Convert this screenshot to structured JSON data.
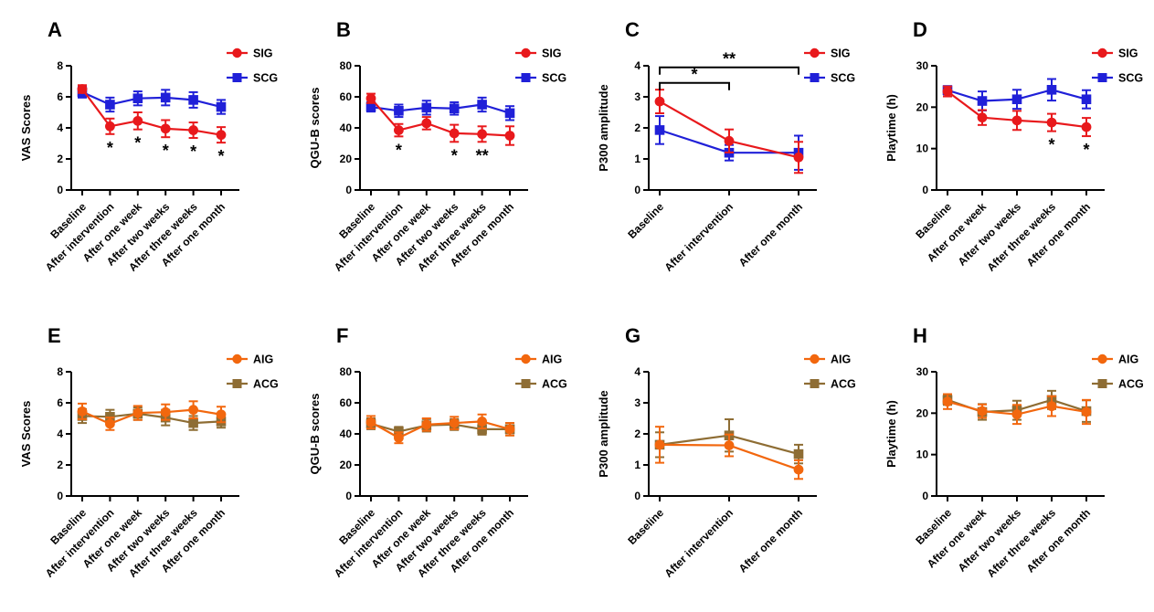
{
  "figure": {
    "background": "#FFFFFF",
    "rows": 2,
    "cols": 4
  },
  "colors": {
    "sig_red": "#E8191C",
    "scg_blue": "#2020D8",
    "aig_orange": "#F2670E",
    "acg_olive": "#8E6D34",
    "axis_black": "#000000"
  },
  "chart_data": [
    {
      "type": "line",
      "panel_label": "A",
      "title": "",
      "xlabel": "",
      "ylabel": "VAS Scores",
      "ylim": [
        0,
        8
      ],
      "yticks": [
        0,
        2,
        4,
        6,
        8
      ],
      "grid": false,
      "legend_position": "top-right",
      "categories": [
        "Baseline",
        "After intervention",
        "After one week",
        "After two weeks",
        "After three weeks",
        "After one month"
      ],
      "series": [
        {
          "name": "SIG",
          "color": "#E8191C",
          "marker": "circle",
          "values": [
            6.5,
            4.1,
            4.45,
            3.95,
            3.85,
            3.55
          ],
          "errors": [
            0.25,
            0.5,
            0.55,
            0.55,
            0.5,
            0.5
          ]
        },
        {
          "name": "SCG",
          "color": "#2020D8",
          "marker": "square",
          "values": [
            6.3,
            5.5,
            5.9,
            5.95,
            5.8,
            5.35
          ],
          "errors": [
            0.35,
            0.45,
            0.45,
            0.5,
            0.5,
            0.45
          ]
        }
      ],
      "sig_below": [
        {
          "category_index": 1,
          "text": "*"
        },
        {
          "category_index": 2,
          "text": "*"
        },
        {
          "category_index": 3,
          "text": "*"
        },
        {
          "category_index": 4,
          "text": "*"
        },
        {
          "category_index": 5,
          "text": "*"
        }
      ],
      "sig_brackets": []
    },
    {
      "type": "line",
      "panel_label": "B",
      "title": "",
      "xlabel": "",
      "ylabel": "QGU-B scores",
      "ylim": [
        0,
        80
      ],
      "yticks": [
        0,
        20,
        40,
        60,
        80
      ],
      "grid": false,
      "legend_position": "top-right",
      "categories": [
        "Baseline",
        "After intervention",
        "After one week",
        "After two weeks",
        "After three weeks",
        "After one month"
      ],
      "series": [
        {
          "name": "SIG",
          "color": "#E8191C",
          "marker": "circle",
          "values": [
            59,
            38.5,
            43,
            36.5,
            36,
            35
          ],
          "errors": [
            3,
            4,
            4,
            5.5,
            5,
            6
          ]
        },
        {
          "name": "SCG",
          "color": "#2020D8",
          "marker": "square",
          "values": [
            53.5,
            51,
            53,
            52.5,
            55,
            49.5
          ],
          "errors": [
            3,
            4,
            4.5,
            4,
            4.5,
            4.5
          ]
        }
      ],
      "sig_below": [
        {
          "category_index": 1,
          "text": "*"
        },
        {
          "category_index": 3,
          "text": "*"
        },
        {
          "category_index": 4,
          "text": "**"
        }
      ],
      "sig_brackets": []
    },
    {
      "type": "line",
      "panel_label": "C",
      "title": "",
      "xlabel": "",
      "ylabel": "P300 amplitude",
      "ylim": [
        0,
        4
      ],
      "yticks": [
        0,
        1,
        2,
        3,
        4
      ],
      "grid": false,
      "legend_position": "top-right",
      "categories": [
        "Baseline",
        "After intervention",
        "After one month"
      ],
      "series": [
        {
          "name": "SIG",
          "color": "#E8191C",
          "marker": "circle",
          "values": [
            2.85,
            1.58,
            1.05
          ],
          "errors": [
            0.38,
            0.37,
            0.5
          ]
        },
        {
          "name": "SCG",
          "color": "#2020D8",
          "marker": "square",
          "values": [
            1.93,
            1.2,
            1.2
          ],
          "errors": [
            0.45,
            0.25,
            0.55
          ]
        }
      ],
      "sig_below": [],
      "sig_brackets": [
        {
          "from": 0,
          "to": 1,
          "y": 3.45,
          "text": "*"
        },
        {
          "from": 0,
          "to": 2,
          "y": 3.95,
          "text": "**"
        }
      ]
    },
    {
      "type": "line",
      "panel_label": "D",
      "title": "",
      "xlabel": "",
      "ylabel": "Playtime (h)",
      "ylim": [
        0,
        30
      ],
      "yticks": [
        0,
        10,
        20,
        30
      ],
      "grid": false,
      "legend_position": "top-right",
      "categories": [
        "Baseline",
        "After one week",
        "After two weeks",
        "After three weeks",
        "After one month"
      ],
      "series": [
        {
          "name": "SIG",
          "color": "#E8191C",
          "marker": "circle",
          "values": [
            23.8,
            17.5,
            16.8,
            16.3,
            15.2
          ],
          "errors": [
            1.2,
            1.8,
            2.3,
            2.1,
            2.2
          ]
        },
        {
          "name": "SCG",
          "color": "#2020D8",
          "marker": "square",
          "values": [
            24.1,
            21.5,
            21.9,
            24.2,
            21.9
          ],
          "errors": [
            1.0,
            2.3,
            2.3,
            2.6,
            2.2
          ]
        }
      ],
      "sig_below": [
        {
          "category_index": 3,
          "text": "*"
        },
        {
          "category_index": 4,
          "text": "*"
        }
      ],
      "sig_brackets": []
    },
    {
      "type": "line",
      "panel_label": "E",
      "title": "",
      "xlabel": "",
      "ylabel": "VAS Scores",
      "ylim": [
        0,
        8
      ],
      "yticks": [
        0,
        2,
        4,
        6,
        8
      ],
      "grid": false,
      "legend_position": "top-right",
      "categories": [
        "Baseline",
        "After intervention",
        "After one week",
        "After two weeks",
        "After three weeks",
        "After one month"
      ],
      "series": [
        {
          "name": "AIG",
          "color": "#F2670E",
          "marker": "circle",
          "values": [
            5.45,
            4.65,
            5.35,
            5.4,
            5.55,
            5.25
          ],
          "errors": [
            0.5,
            0.4,
            0.45,
            0.5,
            0.55,
            0.5
          ]
        },
        {
          "name": "ACG",
          "color": "#8E6D34",
          "marker": "square",
          "values": [
            5.15,
            5.1,
            5.3,
            5.05,
            4.7,
            4.8
          ],
          "errors": [
            0.45,
            0.45,
            0.4,
            0.5,
            0.45,
            0.4
          ]
        }
      ],
      "sig_below": [],
      "sig_brackets": []
    },
    {
      "type": "line",
      "panel_label": "F",
      "title": "",
      "xlabel": "",
      "ylabel": "QGU-B scores",
      "ylim": [
        0,
        80
      ],
      "yticks": [
        0,
        20,
        40,
        60,
        80
      ],
      "grid": false,
      "legend_position": "top-right",
      "categories": [
        "Baseline",
        "After intervention",
        "After one week",
        "After two weeks",
        "After three weeks",
        "After one month"
      ],
      "series": [
        {
          "name": "AIG",
          "color": "#F2670E",
          "marker": "circle",
          "values": [
            47.5,
            37.5,
            46,
            47,
            48,
            43
          ],
          "errors": [
            4,
            3.5,
            4,
            4,
            4.5,
            4
          ]
        },
        {
          "name": "ACG",
          "color": "#8E6D34",
          "marker": "square",
          "values": [
            46.5,
            41.5,
            45.5,
            46,
            43,
            43
          ],
          "errors": [
            3.5,
            3,
            4,
            3.5,
            3.5,
            4
          ]
        }
      ],
      "sig_below": [],
      "sig_brackets": []
    },
    {
      "type": "line",
      "panel_label": "G",
      "title": "",
      "xlabel": "",
      "ylabel": "P300 amplitude",
      "ylim": [
        0,
        4
      ],
      "yticks": [
        0,
        1,
        2,
        3,
        4
      ],
      "grid": false,
      "legend_position": "top-right",
      "categories": [
        "Baseline",
        "After intervention",
        "After one month"
      ],
      "series": [
        {
          "name": "AIG",
          "color": "#F2670E",
          "marker": "circle",
          "values": [
            1.65,
            1.63,
            0.85
          ],
          "errors": [
            0.58,
            0.35,
            0.3
          ]
        },
        {
          "name": "ACG",
          "color": "#8E6D34",
          "marker": "square",
          "values": [
            1.65,
            1.95,
            1.35
          ],
          "errors": [
            0.4,
            0.52,
            0.3
          ]
        }
      ],
      "sig_below": [],
      "sig_brackets": []
    },
    {
      "type": "line",
      "panel_label": "H",
      "title": "",
      "xlabel": "",
      "ylabel": "Playtime (h)",
      "ylim": [
        0,
        30
      ],
      "yticks": [
        0,
        10,
        20,
        30
      ],
      "grid": false,
      "legend_position": "top-right",
      "categories": [
        "Baseline",
        "After one week",
        "After two weeks",
        "After three weeks",
        "After one month"
      ],
      "series": [
        {
          "name": "AIG",
          "color": "#F2670E",
          "marker": "circle",
          "values": [
            22.8,
            20.5,
            19.7,
            21.7,
            20.3
          ],
          "errors": [
            1.8,
            1.6,
            2.3,
            2.4,
            2.9
          ]
        },
        {
          "name": "ACG",
          "color": "#8E6D34",
          "marker": "square",
          "values": [
            23.2,
            20.3,
            20.7,
            23.2,
            20.5
          ],
          "errors": [
            1.2,
            1.9,
            2.3,
            2.2,
            2.6
          ]
        }
      ],
      "sig_below": [],
      "sig_brackets": []
    }
  ]
}
